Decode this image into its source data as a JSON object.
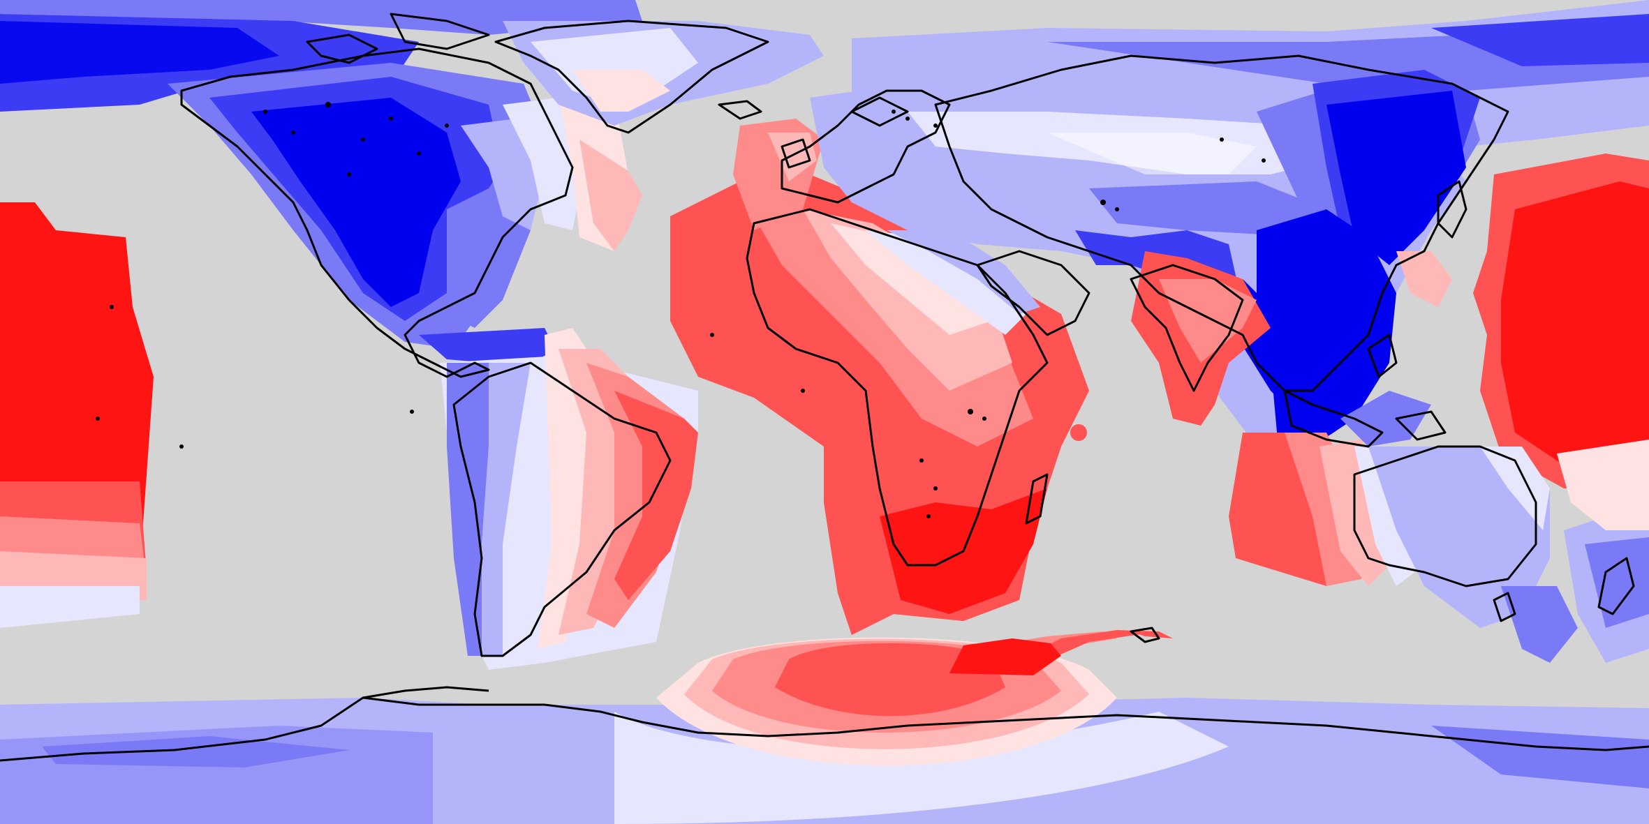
{
  "map": {
    "projection": "equirectangular",
    "background_color": "#d4d4d4",
    "coastline_color": "#000000",
    "palette": {
      "blue_strong": "#0000ee",
      "blue_mid": "#3c3cf5",
      "blue_light": "#7a7af7",
      "blue_pale": "#b4b4fb",
      "blue_faint": "#e6e6fe",
      "red_faint": "#ffe2e2",
      "red_pale": "#ffb8b8",
      "red_light": "#ff8a8a",
      "red_mid": "#ff5252",
      "red_strong": "#ff1414"
    },
    "legend": []
  }
}
